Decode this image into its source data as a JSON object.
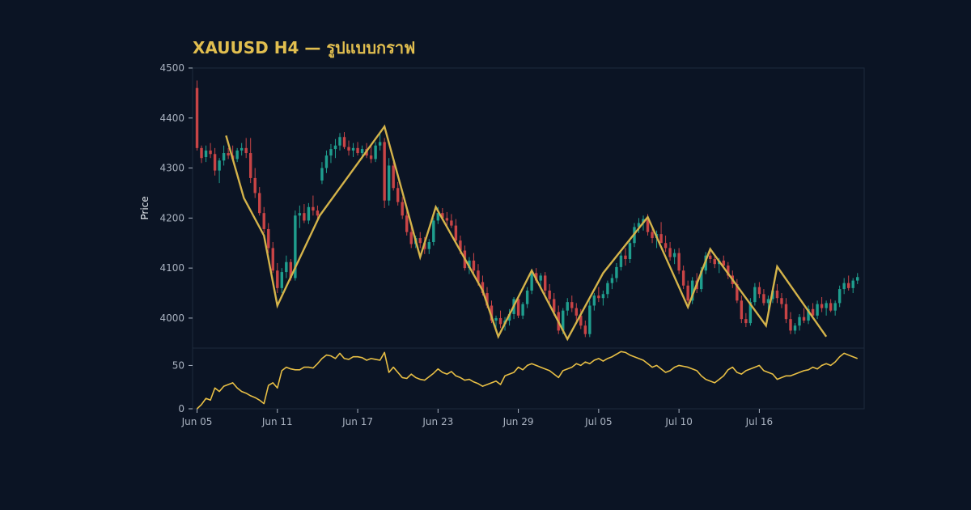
{
  "chart_data": {
    "type": "candlestick",
    "title": "XAUUSD H4 — รูปแบบกราฟ",
    "price_panel": {
      "ylabel": "Price",
      "ylim": [
        3940,
        4500
      ],
      "yticks": [
        4000,
        4100,
        4200,
        4300,
        4400,
        4500
      ],
      "candles": [
        [
          0,
          4460,
          4475,
          4335,
          4340
        ],
        [
          1,
          4340,
          4345,
          4310,
          4320
        ],
        [
          2,
          4322,
          4345,
          4312,
          4335
        ],
        [
          3,
          4335,
          4350,
          4320,
          4328
        ],
        [
          4,
          4328,
          4340,
          4285,
          4295
        ],
        [
          5,
          4295,
          4320,
          4270,
          4315
        ],
        [
          6,
          4315,
          4345,
          4305,
          4330
        ],
        [
          7,
          4330,
          4340,
          4318,
          4325
        ],
        [
          8,
          4325,
          4345,
          4315,
          4318
        ],
        [
          9,
          4318,
          4340,
          4312,
          4335
        ],
        [
          10,
          4335,
          4350,
          4325,
          4340
        ],
        [
          11,
          4340,
          4360,
          4320,
          4330
        ],
        [
          12,
          4330,
          4360,
          4270,
          4280
        ],
        [
          13,
          4280,
          4300,
          4240,
          4250
        ],
        [
          14,
          4250,
          4262,
          4205,
          4210
        ],
        [
          15,
          4210,
          4222,
          4170,
          4178
        ],
        [
          16,
          4178,
          4190,
          4130,
          4140
        ],
        [
          17,
          4140,
          4152,
          4090,
          4095
        ],
        [
          18,
          4095,
          4110,
          4050,
          4060
        ],
        [
          19,
          4060,
          4100,
          4050,
          4092
        ],
        [
          20,
          4092,
          4125,
          4080,
          4112
        ],
        [
          21,
          4112,
          4118,
          4075,
          4080
        ],
        [
          22,
          4080,
          4215,
          4075,
          4205
        ],
        [
          23,
          4205,
          4225,
          4180,
          4210
        ],
        [
          24,
          4210,
          4228,
          4190,
          4195
        ],
        [
          25,
          4195,
          4230,
          4188,
          4222
        ],
        [
          26,
          4222,
          4245,
          4205,
          4215
        ],
        [
          27,
          4215,
          4225,
          4195,
          4205
        ],
        [
          28,
          4275,
          4312,
          4268,
          4300
        ],
        [
          29,
          4300,
          4335,
          4290,
          4325
        ],
        [
          30,
          4325,
          4348,
          4310,
          4338
        ],
        [
          31,
          4338,
          4358,
          4320,
          4345
        ],
        [
          32,
          4345,
          4370,
          4335,
          4362
        ],
        [
          33,
          4362,
          4372,
          4338,
          4342
        ],
        [
          34,
          4342,
          4355,
          4325,
          4335
        ],
        [
          35,
          4335,
          4350,
          4322,
          4340
        ],
        [
          36,
          4340,
          4352,
          4325,
          4330
        ],
        [
          37,
          4330,
          4345,
          4318,
          4338
        ],
        [
          38,
          4338,
          4350,
          4320,
          4325
        ],
        [
          39,
          4325,
          4345,
          4310,
          4318
        ],
        [
          40,
          4318,
          4352,
          4312,
          4345
        ],
        [
          41,
          4345,
          4368,
          4335,
          4352
        ],
        [
          42,
          4352,
          4360,
          4220,
          4235
        ],
        [
          43,
          4235,
          4320,
          4225,
          4305
        ],
        [
          44,
          4305,
          4312,
          4255,
          4260
        ],
        [
          45,
          4260,
          4272,
          4225,
          4232
        ],
        [
          46,
          4232,
          4242,
          4198,
          4205
        ],
        [
          47,
          4205,
          4215,
          4165,
          4172
        ],
        [
          48,
          4172,
          4185,
          4140,
          4148
        ],
        [
          49,
          4148,
          4165,
          4140,
          4160
        ],
        [
          50,
          4160,
          4172,
          4140,
          4150
        ],
        [
          51,
          4150,
          4162,
          4128,
          4138
        ],
        [
          52,
          4138,
          4158,
          4128,
          4152
        ],
        [
          53,
          4152,
          4200,
          4145,
          4195
        ],
        [
          54,
          4195,
          4222,
          4188,
          4210
        ],
        [
          55,
          4210,
          4220,
          4195,
          4200
        ],
        [
          56,
          4200,
          4212,
          4185,
          4195
        ],
        [
          57,
          4195,
          4208,
          4180,
          4185
        ],
        [
          58,
          4185,
          4198,
          4150,
          4155
        ],
        [
          59,
          4155,
          4165,
          4128,
          4135
        ],
        [
          60,
          4135,
          4145,
          4095,
          4100
        ],
        [
          61,
          4100,
          4122,
          4088,
          4115
        ],
        [
          62,
          4115,
          4130,
          4090,
          4095
        ],
        [
          63,
          4095,
          4108,
          4065,
          4072
        ],
        [
          64,
          4072,
          4085,
          4045,
          4050
        ],
        [
          65,
          4050,
          4062,
          4020,
          4025
        ],
        [
          66,
          4025,
          4035,
          3990,
          3995
        ],
        [
          67,
          3995,
          4005,
          3978,
          4000
        ],
        [
          68,
          4000,
          4015,
          3980,
          3988
        ],
        [
          69,
          3988,
          4002,
          3975,
          3995
        ],
        [
          70,
          3995,
          4018,
          3985,
          4008
        ],
        [
          71,
          4008,
          4042,
          3998,
          4038
        ],
        [
          72,
          4038,
          4045,
          4000,
          4005
        ],
        [
          73,
          4005,
          4032,
          3998,
          4028
        ],
        [
          74,
          4028,
          4062,
          4020,
          4055
        ],
        [
          75,
          4055,
          4098,
          4048,
          4090
        ],
        [
          76,
          4090,
          4100,
          4070,
          4075
        ],
        [
          77,
          4075,
          4090,
          4062,
          4085
        ],
        [
          78,
          4085,
          4092,
          4048,
          4055
        ],
        [
          79,
          4055,
          4068,
          4030,
          4038
        ],
        [
          80,
          4038,
          4050,
          4005,
          4012
        ],
        [
          81,
          4012,
          4025,
          3968,
          3975
        ],
        [
          82,
          3975,
          4020,
          3968,
          4015
        ],
        [
          83,
          4015,
          4040,
          4005,
          4032
        ],
        [
          84,
          4032,
          4045,
          4012,
          4020
        ],
        [
          85,
          4020,
          4030,
          3995,
          4005
        ],
        [
          86,
          4005,
          4018,
          3978,
          3985
        ],
        [
          87,
          3985,
          3995,
          3962,
          3968
        ],
        [
          88,
          3968,
          4035,
          3962,
          4025
        ],
        [
          89,
          4025,
          4050,
          4015,
          4045
        ],
        [
          90,
          4045,
          4062,
          4032,
          4040
        ],
        [
          91,
          4040,
          4055,
          4025,
          4048
        ],
        [
          92,
          4048,
          4075,
          4040,
          4070
        ],
        [
          93,
          4070,
          4088,
          4058,
          4080
        ],
        [
          94,
          4080,
          4110,
          4072,
          4102
        ],
        [
          95,
          4102,
          4132,
          4095,
          4125
        ],
        [
          96,
          4125,
          4140,
          4105,
          4118
        ],
        [
          97,
          4118,
          4155,
          4110,
          4150
        ],
        [
          98,
          4150,
          4190,
          4142,
          4182
        ],
        [
          99,
          4182,
          4200,
          4170,
          4190
        ],
        [
          100,
          4190,
          4205,
          4175,
          4198
        ],
        [
          101,
          4198,
          4208,
          4165,
          4172
        ],
        [
          102,
          4172,
          4185,
          4150,
          4160
        ],
        [
          103,
          4160,
          4175,
          4140,
          4168
        ],
        [
          104,
          4168,
          4192,
          4155,
          4150
        ],
        [
          105,
          4150,
          4165,
          4132,
          4140
        ],
        [
          106,
          4140,
          4152,
          4115,
          4122
        ],
        [
          107,
          4122,
          4138,
          4108,
          4130
        ],
        [
          108,
          4130,
          4140,
          4088,
          4095
        ],
        [
          109,
          4095,
          4105,
          4058,
          4065
        ],
        [
          110,
          4065,
          4075,
          4030,
          4035
        ],
        [
          111,
          4035,
          4082,
          4028,
          4075
        ],
        [
          112,
          4075,
          4090,
          4050,
          4058
        ],
        [
          113,
          4058,
          4102,
          4052,
          4095
        ],
        [
          114,
          4095,
          4132,
          4088,
          4125
        ],
        [
          115,
          4125,
          4138,
          4110,
          4118
        ],
        [
          116,
          4118,
          4128,
          4100,
          4108
        ],
        [
          117,
          4108,
          4120,
          4090,
          4115
        ],
        [
          118,
          4115,
          4125,
          4100,
          4105
        ],
        [
          119,
          4105,
          4112,
          4078,
          4085
        ],
        [
          120,
          4085,
          4095,
          4060,
          4068
        ],
        [
          121,
          4068,
          4078,
          4030,
          4035
        ],
        [
          122,
          4035,
          4045,
          3990,
          3998
        ],
        [
          123,
          3998,
          4010,
          3982,
          3990
        ],
        [
          124,
          3990,
          4040,
          3985,
          4032
        ],
        [
          125,
          4032,
          4070,
          4025,
          4062
        ],
        [
          126,
          4062,
          4072,
          4040,
          4048
        ],
        [
          127,
          4048,
          4058,
          4025,
          4030
        ],
        [
          128,
          4030,
          4045,
          4015,
          4038
        ],
        [
          129,
          4038,
          4062,
          4030,
          4055
        ],
        [
          130,
          4055,
          4068,
          4030,
          4040
        ],
        [
          131,
          4040,
          4050,
          4020,
          4028
        ],
        [
          132,
          4028,
          4040,
          3990,
          3998
        ],
        [
          133,
          3998,
          4012,
          3968,
          3975
        ],
        [
          134,
          3975,
          3990,
          3968,
          3985
        ],
        [
          135,
          3985,
          4008,
          3975,
          4002
        ],
        [
          136,
          4002,
          4020,
          3990,
          3995
        ],
        [
          137,
          3995,
          4025,
          3988,
          4018
        ],
        [
          138,
          4018,
          4030,
          3998,
          4005
        ],
        [
          139,
          4005,
          4035,
          3998,
          4028
        ],
        [
          140,
          4028,
          4042,
          4012,
          4020
        ],
        [
          141,
          4020,
          4035,
          4005,
          4030
        ],
        [
          142,
          4030,
          4038,
          4012,
          4015
        ],
        [
          143,
          4015,
          4035,
          4005,
          4030
        ],
        [
          144,
          4030,
          4065,
          4022,
          4058
        ],
        [
          145,
          4058,
          4080,
          4048,
          4070
        ],
        [
          146,
          4070,
          4085,
          4055,
          4060
        ],
        [
          147,
          4060,
          4080,
          4050,
          4075
        ],
        [
          148,
          4075,
          4090,
          4068,
          4082
        ]
      ],
      "pattern_line": [
        [
          6.5,
          4365
        ],
        [
          10.5,
          4240
        ],
        [
          15,
          4165
        ],
        [
          18,
          4025
        ],
        [
          27.5,
          4205
        ],
        [
          42,
          4383
        ],
        [
          50,
          4122
        ],
        [
          53.5,
          4222
        ],
        [
          64,
          4055
        ],
        [
          67.5,
          3963
        ],
        [
          75,
          4095
        ],
        [
          83,
          3958
        ],
        [
          91,
          4090
        ],
        [
          101,
          4202
        ],
        [
          110,
          4022
        ],
        [
          115,
          4138
        ],
        [
          127.5,
          3985
        ],
        [
          130,
          4103
        ],
        [
          141,
          3963
        ]
      ]
    },
    "indicator_panel": {
      "ylim": [
        0,
        70
      ],
      "yticks": [
        0,
        50
      ],
      "values": [
        0,
        5,
        12,
        10,
        24,
        20,
        26,
        28,
        30,
        24,
        20,
        18,
        15,
        13,
        10,
        6,
        27,
        30,
        24,
        44,
        48,
        46,
        45,
        45,
        48,
        48,
        47,
        52,
        58,
        62,
        61,
        58,
        64,
        58,
        57,
        60,
        60,
        59,
        56,
        58,
        57,
        56,
        65,
        42,
        48,
        42,
        36,
        35,
        40,
        36,
        34,
        33,
        37,
        41,
        46,
        42,
        40,
        43,
        38,
        36,
        33,
        34,
        31,
        29,
        26,
        28,
        30,
        32,
        28,
        38,
        40,
        42,
        48,
        45,
        50,
        52,
        50,
        48,
        46,
        44,
        40,
        36,
        44,
        46,
        48,
        52,
        50,
        54,
        52,
        56,
        58,
        55,
        58,
        60,
        63,
        66,
        65,
        62,
        60,
        58,
        56,
        52,
        48,
        50,
        46,
        42,
        44,
        48,
        50,
        49,
        48,
        46,
        44,
        38,
        34,
        32,
        30,
        34,
        38,
        45,
        48,
        42,
        40,
        44,
        46,
        48,
        50,
        44,
        42,
        40,
        34,
        36,
        38,
        38,
        40,
        42,
        44,
        45,
        48,
        46,
        50,
        52,
        50,
        54,
        60,
        64,
        62,
        60,
        58
      ]
    },
    "xaxis": {
      "tick_labels": [
        "Jun 05",
        "Jun 11",
        "Jun 17",
        "Jun 23",
        "Jun 29",
        "Jul 05",
        "Jul 10",
        "Jul 16"
      ],
      "tick_index": [
        0,
        18,
        36,
        54,
        72,
        90,
        108,
        126
      ]
    },
    "colors": {
      "background": "#0b1424",
      "panel_border": "#1e2a3c",
      "up_candle": "#1f9e8e",
      "down_candle": "#c84446",
      "pattern_line": "#d4b34a",
      "indicator_line": "#e8bf45",
      "title": "#e1be4f",
      "tick_text": "#aab3c1",
      "axis_title": "#e8ecf1"
    }
  }
}
